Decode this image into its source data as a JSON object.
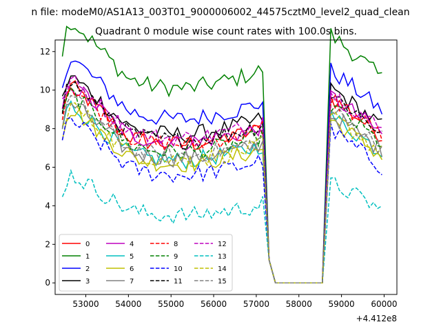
{
  "suptitle": "n file: modeM0/AS1A13_003T01_9000006002_44575cztM0_level2_quad_clean",
  "chart_data": {
    "type": "line",
    "title": "Quadrant 0 module wise count rates with 100.0s bins.",
    "xlabel": "",
    "ylabel": "",
    "x_offset_label": "+4.412e8",
    "xlim": [
      52280,
      60300
    ],
    "ylim": [
      -0.6,
      12.6
    ],
    "x_ticks": [
      53000,
      54000,
      55000,
      56000,
      57000,
      58000,
      59000,
      60000
    ],
    "x_tick_labels": [
      "53000",
      "54000",
      "55000",
      "56000",
      "57000",
      "58000",
      "59000",
      "60000"
    ],
    "y_ticks": [
      0,
      2,
      4,
      6,
      8,
      10,
      12
    ],
    "y_tick_labels": [
      "0",
      "2",
      "4",
      "6",
      "8",
      "10",
      "12"
    ],
    "grid": false,
    "legend": {
      "placement": "lower-left",
      "columns": 4
    },
    "series": [
      {
        "name": "0",
        "color": "#ff0000",
        "dash": "solid",
        "level": 0,
        "amp": 1.0
      },
      {
        "name": "1",
        "color": "#008000",
        "dash": "solid",
        "level": 1.6,
        "amp": 1.15
      },
      {
        "name": "2",
        "color": "#0000ff",
        "dash": "solid",
        "level": 0.9,
        "amp": 1.05
      },
      {
        "name": "3",
        "color": "#000000",
        "dash": "solid",
        "level": 0.5,
        "amp": 1.0
      },
      {
        "name": "4",
        "color": "#bf00bf",
        "dash": "solid",
        "level": 0.1,
        "amp": 1.0
      },
      {
        "name": "5",
        "color": "#00bfbf",
        "dash": "solid",
        "level": -0.5,
        "amp": 0.95
      },
      {
        "name": "6",
        "color": "#bfbf00",
        "dash": "solid",
        "level": -0.7,
        "amp": 0.95
      },
      {
        "name": "7",
        "color": "#808080",
        "dash": "solid",
        "level": -0.4,
        "amp": 0.95
      },
      {
        "name": "8",
        "color": "#ff0000",
        "dash": "dashed",
        "level": 0.0,
        "amp": 1.0
      },
      {
        "name": "9",
        "color": "#008000",
        "dash": "dashed",
        "level": -0.4,
        "amp": 1.0
      },
      {
        "name": "10",
        "color": "#0000ff",
        "dash": "dashed",
        "level": -1.3,
        "amp": 0.95
      },
      {
        "name": "11",
        "color": "#000000",
        "dash": "dashed",
        "level": 0.2,
        "amp": 1.0
      },
      {
        "name": "12",
        "color": "#bf00bf",
        "dash": "dashed",
        "level": 0.3,
        "amp": 1.0
      },
      {
        "name": "13",
        "color": "#00bfbf",
        "dash": "dashed",
        "level": -2.2,
        "amp": 0.7
      },
      {
        "name": "14",
        "color": "#bfbf00",
        "dash": "dashed",
        "level": -0.5,
        "amp": 0.95
      },
      {
        "name": "15",
        "color": "#808080",
        "dash": "dashed",
        "level": -0.6,
        "amp": 1.0
      }
    ],
    "segments": {
      "bin_width": 100,
      "first_start": 52450,
      "first_end": 57200,
      "drop_to": 57450,
      "gap_end": 58550,
      "second_start": 58750,
      "second_end": 59950,
      "first_base": [
        [
          52450,
          8.9
        ],
        [
          52600,
          10.3
        ],
        [
          53000,
          9.6
        ],
        [
          53500,
          8.6
        ],
        [
          54000,
          7.6
        ],
        [
          54500,
          7.3
        ],
        [
          55000,
          7.2
        ],
        [
          55500,
          7.2
        ],
        [
          56000,
          7.4
        ],
        [
          56500,
          7.6
        ],
        [
          57000,
          7.9
        ],
        [
          57200,
          8.1
        ]
      ],
      "second_base": [
        [
          58750,
          9.6
        ],
        [
          59000,
          9.2
        ],
        [
          59500,
          8.4
        ],
        [
          59950,
          7.6
        ]
      ]
    }
  }
}
